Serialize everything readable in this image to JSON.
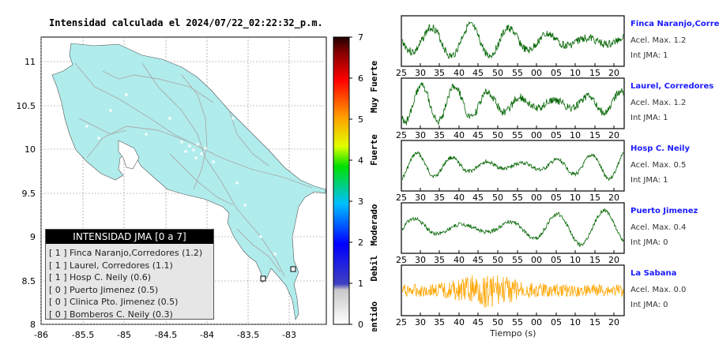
{
  "map": {
    "title": "Intensidad calculada el 2024/07/22_02:22:32_p.m.",
    "lon_ticks": [
      "-86",
      "-85.5",
      "-85",
      "-84.5",
      "-84",
      "-83.5",
      "-83"
    ],
    "lat_ticks": [
      "11",
      "10.5",
      "10",
      "9.5",
      "9",
      "8.5",
      "8"
    ],
    "colors": {
      "land": "#b0ecec",
      "roads": "#aaaaaa",
      "grid": "#888888"
    }
  },
  "colorbar": {
    "ticks": [
      "7",
      "6",
      "5",
      "4",
      "3",
      "2",
      "1",
      "0"
    ],
    "categories": [
      "Muy Fuerte",
      "Fuerte",
      "Moderado",
      "Debil",
      "No sentido"
    ]
  },
  "legend": {
    "title": "INTENSIDAD JMA [0 a 7]",
    "rows": [
      {
        "level": "[ 1 ]",
        "label": "Finca Naranjo,Corredores (1.2)"
      },
      {
        "level": "[ 1 ]",
        "label": "Laurel, Corredores (1.1)"
      },
      {
        "level": "[ 1 ]",
        "label": "Hosp C. Neily (0.6)"
      },
      {
        "level": "[ 0 ]",
        "label": "Puerto Jimenez (0.5)"
      },
      {
        "level": "[ 0 ]",
        "label": "Clinica Pto. Jimenez (0.5)"
      },
      {
        "level": "[ 0 ]",
        "label": "Bomberos C. Neily (0.3)"
      }
    ]
  },
  "chart_data": {
    "type": "line",
    "x_tick_labels": [
      "25",
      "30",
      "35",
      "40",
      "45",
      "50",
      "55",
      "00",
      "05",
      "10",
      "15",
      "20"
    ],
    "xlabel": "Tiempo (s)",
    "series": [
      {
        "name": "Finca Naranjo,Corredores",
        "acc": "Acel. Max. 1.2",
        "int": "Int JMA: 1",
        "color": "#006400",
        "peak": 1.2
      },
      {
        "name": "Laurel, Corredores",
        "acc": "Acel. Max. 1.2",
        "int": "Int JMA: 1",
        "color": "#006400",
        "peak": 1.2
      },
      {
        "name": "Hosp C. Neily",
        "acc": "Acel. Max. 0.5",
        "int": "Int JMA: 1",
        "color": "#006400",
        "peak": 0.5
      },
      {
        "name": "Puerto Jimenez",
        "acc": "Acel. Max. 0.4",
        "int": "Int JMA: 0",
        "color": "#006400",
        "peak": 0.4
      },
      {
        "name": "La Sabana",
        "acc": "Acel. Max. 0.0",
        "int": "Int JMA: 0",
        "color": "#ffa500",
        "peak": 0.0
      }
    ]
  }
}
